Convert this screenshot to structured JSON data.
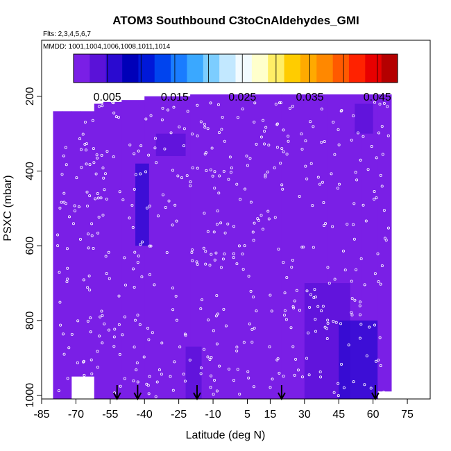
{
  "chart_data": {
    "type": "heatmap",
    "title": "ATOM3 Southbound C3toCnAldehydes_GMI",
    "flights_label": "Flts: 2,3,4,5,6,7",
    "dates_label": "MMDD: 1001,1004,1006,1008,1011,1014",
    "xlabel": "Latitude (deg N)",
    "ylabel": "PSXC (mbar)",
    "xlim": [
      -85,
      85
    ],
    "ylim": [
      1010,
      50
    ],
    "y_inverted": true,
    "x_ticks": [
      "-85",
      "-70",
      "-55",
      "-40",
      "-25",
      "-10",
      "5",
      "15",
      "30",
      "45",
      "60",
      "75"
    ],
    "x_tick_values": [
      -85,
      -70,
      -55,
      -40,
      -25,
      -10,
      5,
      15,
      30,
      45,
      60,
      75
    ],
    "y_ticks": [
      "200",
      "400",
      "600",
      "800",
      "1000"
    ],
    "y_tick_values": [
      200,
      400,
      600,
      800,
      1000
    ],
    "colorbar": {
      "min": 0.0,
      "max": 0.048,
      "tick_labels": [
        "0.005",
        "0.015",
        "0.025",
        "0.035",
        "0.045"
      ],
      "tick_values": [
        0.005,
        0.015,
        0.025,
        0.035,
        0.045
      ],
      "colors": [
        "#7a1fe6",
        "#5a12d8",
        "#2a0ad0",
        "#0000b8",
        "#0018d8",
        "#0044ee",
        "#1a7cff",
        "#3aa8ff",
        "#7ccdff",
        "#c2e8ff",
        "#f2fbff",
        "#ffffcc",
        "#ffee66",
        "#ffcc00",
        "#ffaa00",
        "#ff8800",
        "#ff5a00",
        "#ff2200",
        "#e80000",
        "#b40000"
      ]
    },
    "background_color": "#7a1fe6",
    "low_patches": [
      {
        "lat_min": -35,
        "lat_max": -22,
        "p_min": 300,
        "p_max": 360,
        "value": 0.003
      },
      {
        "lat_min": 52,
        "lat_max": 60,
        "p_min": 220,
        "p_max": 300,
        "value": 0.003
      },
      {
        "lat_min": 30,
        "lat_max": 50,
        "p_min": 700,
        "p_max": 1010,
        "value": 0.004
      },
      {
        "lat_min": -22,
        "lat_max": -15,
        "p_min": 870,
        "p_max": 1010,
        "value": 0.003
      },
      {
        "lat_min": -44,
        "lat_max": -38,
        "p_min": 380,
        "p_max": 600,
        "value": 0.006
      },
      {
        "lat_min": 45,
        "lat_max": 62,
        "p_min": 800,
        "p_max": 1010,
        "value": 0.005
      }
    ],
    "arrow_latitudes": [
      -52,
      -43,
      -17,
      20,
      61
    ]
  }
}
